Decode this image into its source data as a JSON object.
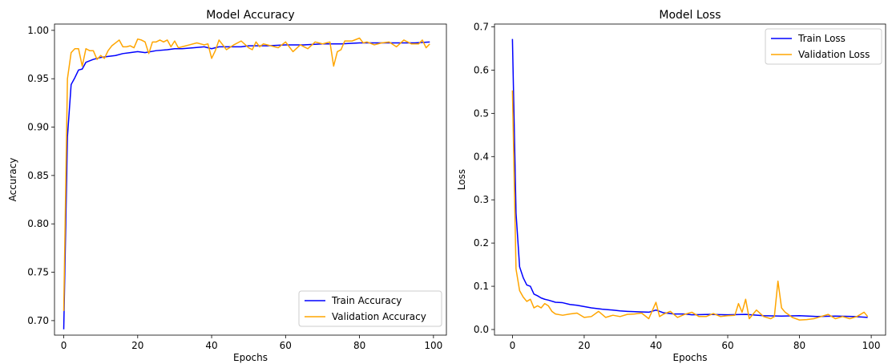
{
  "chart_data": [
    {
      "type": "line",
      "title": "Model Accuracy",
      "xlabel": "Epochs",
      "ylabel": "Accuracy",
      "xlim": [
        -2.5,
        103.5
      ],
      "ylim": [
        0.685,
        1.0065
      ],
      "xticks": [
        0,
        20,
        40,
        60,
        80,
        100
      ],
      "xtick_labels": [
        "0",
        "20",
        "40",
        "60",
        "80",
        "100"
      ],
      "yticks": [
        0.7,
        0.75,
        0.8,
        0.85,
        0.9,
        0.95,
        1.0
      ],
      "ytick_labels": [
        "0.70",
        "0.75",
        "0.80",
        "0.85",
        "0.90",
        "0.95",
        "1.00"
      ],
      "grid": false,
      "legend_position": "lower-right",
      "series": [
        {
          "name": "Train Accuracy",
          "color": "#0000ff",
          "x": [
            0,
            1,
            2,
            3,
            4,
            5,
            6,
            8,
            10,
            12,
            14,
            16,
            18,
            20,
            22,
            25,
            28,
            30,
            32,
            35,
            38,
            40,
            42,
            45,
            48,
            50,
            55,
            60,
            65,
            70,
            75,
            80,
            85,
            90,
            95,
            99
          ],
          "values": [
            0.691,
            0.89,
            0.944,
            0.951,
            0.959,
            0.96,
            0.967,
            0.97,
            0.972,
            0.973,
            0.974,
            0.976,
            0.977,
            0.978,
            0.977,
            0.979,
            0.98,
            0.981,
            0.981,
            0.982,
            0.983,
            0.981,
            0.983,
            0.983,
            0.983,
            0.984,
            0.984,
            0.985,
            0.985,
            0.986,
            0.986,
            0.987,
            0.987,
            0.987,
            0.987,
            0.988
          ]
        },
        {
          "name": "Validation Accuracy",
          "color": "#ffa500",
          "x": [
            0,
            1,
            2,
            3,
            4,
            5,
            6,
            7,
            8,
            9,
            10,
            11,
            12,
            13,
            14,
            15,
            16,
            17,
            18,
            19,
            20,
            21,
            22,
            23,
            24,
            25,
            26,
            27,
            28,
            29,
            30,
            31,
            32,
            34,
            36,
            38,
            39,
            40,
            41,
            42,
            44,
            46,
            48,
            50,
            51,
            52,
            53,
            54,
            56,
            58,
            60,
            62,
            64,
            66,
            68,
            70,
            72,
            73,
            74,
            75,
            76,
            78,
            80,
            81,
            82,
            84,
            86,
            88,
            90,
            92,
            94,
            96,
            97,
            98,
            99
          ],
          "values": [
            0.71,
            0.95,
            0.977,
            0.981,
            0.981,
            0.963,
            0.981,
            0.979,
            0.979,
            0.97,
            0.974,
            0.971,
            0.979,
            0.984,
            0.987,
            0.99,
            0.983,
            0.983,
            0.984,
            0.982,
            0.991,
            0.99,
            0.988,
            0.976,
            0.988,
            0.988,
            0.99,
            0.988,
            0.99,
            0.983,
            0.989,
            0.982,
            0.983,
            0.985,
            0.987,
            0.985,
            0.986,
            0.971,
            0.979,
            0.99,
            0.98,
            0.985,
            0.989,
            0.982,
            0.98,
            0.988,
            0.983,
            0.986,
            0.984,
            0.982,
            0.988,
            0.978,
            0.985,
            0.981,
            0.988,
            0.986,
            0.988,
            0.963,
            0.978,
            0.98,
            0.989,
            0.989,
            0.992,
            0.987,
            0.988,
            0.985,
            0.987,
            0.988,
            0.983,
            0.99,
            0.986,
            0.986,
            0.99,
            0.982,
            0.986
          ]
        }
      ]
    },
    {
      "type": "line",
      "title": "Model Loss",
      "xlabel": "Epochs",
      "ylabel": "Loss",
      "xlim": [
        -5,
        104
      ],
      "ylim": [
        -0.013,
        0.7065
      ],
      "xticks": [
        0,
        20,
        40,
        60,
        80,
        100
      ],
      "xtick_labels": [
        "0",
        "20",
        "40",
        "60",
        "80",
        "100"
      ],
      "yticks": [
        0.0,
        0.1,
        0.2,
        0.3,
        0.4,
        0.5,
        0.6,
        0.7
      ],
      "ytick_labels": [
        "0.0",
        "0.1",
        "0.2",
        "0.3",
        "0.4",
        "0.5",
        "0.6",
        "0.7"
      ],
      "grid": false,
      "legend_position": "upper-right",
      "series": [
        {
          "name": "Train Loss",
          "color": "#0000ff",
          "x": [
            0,
            1,
            2,
            3,
            4,
            5,
            6,
            7,
            8,
            9,
            10,
            12,
            14,
            16,
            18,
            20,
            22,
            25,
            28,
            30,
            32,
            35,
            38,
            40,
            42,
            45,
            48,
            50,
            55,
            60,
            65,
            70,
            75,
            80,
            85,
            90,
            95,
            99
          ],
          "values": [
            0.672,
            0.27,
            0.145,
            0.12,
            0.103,
            0.1,
            0.082,
            0.078,
            0.073,
            0.07,
            0.068,
            0.063,
            0.062,
            0.058,
            0.056,
            0.053,
            0.05,
            0.047,
            0.045,
            0.043,
            0.042,
            0.041,
            0.04,
            0.045,
            0.039,
            0.036,
            0.036,
            0.034,
            0.035,
            0.034,
            0.035,
            0.032,
            0.031,
            0.032,
            0.03,
            0.031,
            0.03,
            0.028
          ]
        },
        {
          "name": "Validation Loss",
          "color": "#ffa500",
          "x": [
            0,
            1,
            2,
            3,
            4,
            5,
            6,
            7,
            8,
            9,
            10,
            11,
            12,
            14,
            16,
            18,
            20,
            22,
            24,
            26,
            28,
            30,
            32,
            34,
            36,
            38,
            40,
            41,
            42,
            44,
            46,
            48,
            50,
            52,
            54,
            56,
            58,
            60,
            62,
            63,
            64,
            65,
            66,
            68,
            70,
            72,
            73,
            74,
            75,
            76,
            78,
            80,
            82,
            84,
            86,
            88,
            90,
            92,
            94,
            96,
            98,
            99
          ],
          "values": [
            0.553,
            0.14,
            0.09,
            0.075,
            0.065,
            0.07,
            0.05,
            0.055,
            0.05,
            0.06,
            0.055,
            0.042,
            0.036,
            0.033,
            0.036,
            0.038,
            0.028,
            0.03,
            0.042,
            0.028,
            0.033,
            0.03,
            0.035,
            0.036,
            0.038,
            0.025,
            0.063,
            0.03,
            0.035,
            0.042,
            0.028,
            0.035,
            0.04,
            0.03,
            0.03,
            0.037,
            0.03,
            0.032,
            0.033,
            0.06,
            0.04,
            0.07,
            0.025,
            0.045,
            0.03,
            0.025,
            0.03,
            0.112,
            0.05,
            0.04,
            0.028,
            0.022,
            0.023,
            0.025,
            0.03,
            0.035,
            0.025,
            0.03,
            0.025,
            0.03,
            0.04,
            0.03
          ]
        }
      ]
    }
  ]
}
